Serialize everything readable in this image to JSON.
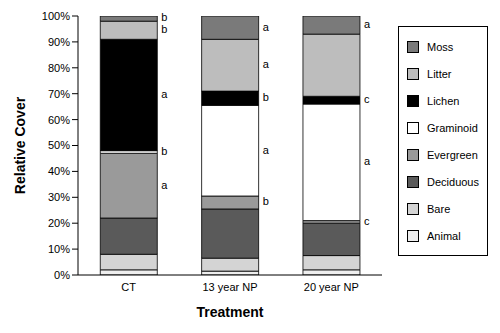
{
  "chart_data": {
    "type": "bar",
    "stacked": true,
    "xlabel": "Treatment",
    "ylabel": "Relative Cover",
    "categories": [
      "CT",
      "13 year NP",
      "20 year NP"
    ],
    "ylim": [
      0,
      100
    ],
    "yticks": [
      {
        "value": 0,
        "label": "0%"
      },
      {
        "value": 10,
        "label": "10%"
      },
      {
        "value": 20,
        "label": "20%"
      },
      {
        "value": 30,
        "label": "30%"
      },
      {
        "value": 40,
        "label": "40%"
      },
      {
        "value": 50,
        "label": "50%"
      },
      {
        "value": 60,
        "label": "60%"
      },
      {
        "value": 70,
        "label": "70%"
      },
      {
        "value": 80,
        "label": "80%"
      },
      {
        "value": 90,
        "label": "90%"
      },
      {
        "value": 100,
        "label": "100%"
      }
    ],
    "legend": "right",
    "series": [
      {
        "name": "Animal",
        "color": "#eeeeee",
        "values": [
          2,
          1.5,
          2
        ],
        "annotations": [
          null,
          null,
          null
        ]
      },
      {
        "name": "Bare",
        "color": "#d4d4d4",
        "values": [
          6,
          5,
          5.5
        ],
        "annotations": [
          null,
          null,
          null
        ]
      },
      {
        "name": "Deciduous",
        "color": "#5a5a5a",
        "values": [
          14,
          19,
          12.5
        ],
        "annotations": [
          null,
          null,
          null
        ]
      },
      {
        "name": "Evergreen",
        "color": "#9a9a9a",
        "values": [
          25,
          5,
          1
        ],
        "annotations": [
          "a",
          "b",
          "c"
        ]
      },
      {
        "name": "Graminoid",
        "color": "#ffffff",
        "values": [
          1,
          35,
          45
        ],
        "annotations": [
          "b",
          "a",
          "a"
        ]
      },
      {
        "name": "Lichen",
        "color": "#000000",
        "values": [
          43,
          5.5,
          3
        ],
        "annotations": [
          "a",
          "b",
          "c"
        ]
      },
      {
        "name": "Litter",
        "color": "#bdbdbd",
        "values": [
          7,
          20,
          24
        ],
        "annotations": [
          "b",
          "a",
          null
        ]
      },
      {
        "name": "Moss",
        "color": "#7a7a7a",
        "values": [
          2,
          9,
          7
        ],
        "annotations": [
          "b",
          "a",
          "a"
        ]
      }
    ]
  }
}
